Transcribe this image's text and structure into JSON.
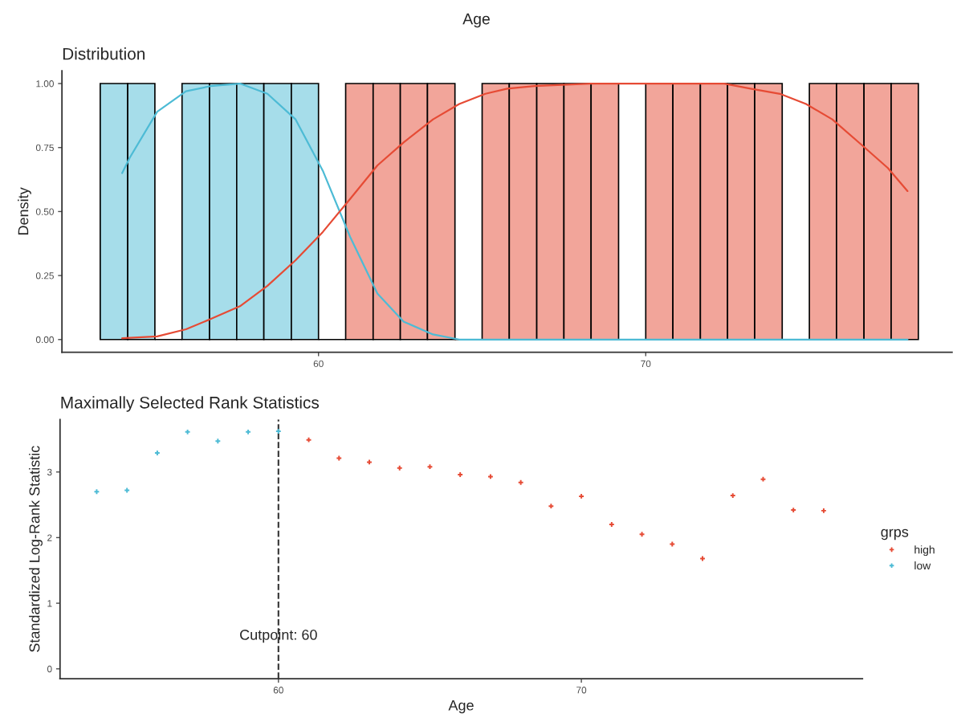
{
  "chart_data": [
    {
      "type": "histogram",
      "title": "Distribution",
      "ylabel": "Density",
      "annotations": [
        "Age"
      ],
      "bins": [
        53.33,
        54.17,
        55.0,
        55.83,
        56.67,
        57.5,
        58.33,
        59.17,
        60.0,
        60.83,
        61.67,
        62.5,
        63.33,
        64.17,
        65.0,
        65.83,
        66.67,
        67.5,
        68.33,
        69.17,
        70.0,
        70.83,
        71.67,
        72.5,
        73.33,
        74.17,
        75.0,
        75.83,
        76.67,
        77.5,
        78.33
      ],
      "values": [
        1,
        1,
        0,
        1,
        1,
        1,
        1,
        1,
        0,
        1,
        1,
        1,
        1,
        0,
        1,
        1,
        1,
        1,
        1,
        0,
        1,
        1,
        1,
        1,
        1,
        0,
        1,
        1,
        1,
        1
      ],
      "colors": [
        "#a6ddea",
        "#a6ddea",
        "#000000",
        "#a6ddea",
        "#a6ddea",
        "#a6ddea",
        "#a6ddea",
        "#a6ddea",
        "#000000",
        "#f2a59a",
        "#f2a59a",
        "#f2a59a",
        "#f2a59a",
        "#000000",
        "#f2a59a",
        "#f2a59a",
        "#f2a59a",
        "#f2a59a",
        "#f2a59a",
        "#000000",
        "#f2a59a",
        "#f2a59a",
        "#f2a59a",
        "#f2a59a",
        "#f2a59a",
        "#000000",
        "#f2a59a",
        "#f2a59a",
        "#f2a59a",
        "#f2a59a"
      ],
      "xlim": [
        52.16,
        79.36
      ],
      "xticks": [
        60,
        70
      ],
      "ylim": [
        -0.05,
        1.05
      ],
      "yticks": [
        {
          "value": 0,
          "label": "0.00"
        },
        {
          "value": 0.25,
          "label": "0.25"
        },
        {
          "value": 0.5,
          "label": "0.50"
        },
        {
          "value": 0.75,
          "label": "0.75"
        },
        {
          "value": 1,
          "label": "1.00"
        }
      ],
      "series": [
        {
          "type": "line",
          "color": "#4dbbd5",
          "x": [
            54,
            54.23,
            55.07,
            55.95,
            56.7,
            57.6,
            58.44,
            59.3,
            60.13,
            60.97,
            61.8,
            62.6,
            63.5,
            64.3,
            66,
            70,
            74,
            78
          ],
          "values": [
            0.65,
            0.71,
            0.89,
            0.97,
            0.99,
            1.0,
            0.96,
            0.86,
            0.66,
            0.4,
            0.18,
            0.07,
            0.02,
            0,
            0,
            0,
            0,
            0
          ]
        },
        {
          "type": "line",
          "color": "#e64b35",
          "x": [
            54,
            55.07,
            55.95,
            56.7,
            57.6,
            58.44,
            59.3,
            60.13,
            60.97,
            61.8,
            62.6,
            63.5,
            64.3,
            65.1,
            65.77,
            66.6,
            68.3,
            70,
            72.4,
            73.2,
            74.1,
            74.9,
            75.7,
            76.6,
            77.4,
            78
          ],
          "values": [
            0.005,
            0.012,
            0.04,
            0.08,
            0.13,
            0.21,
            0.31,
            0.42,
            0.55,
            0.68,
            0.77,
            0.86,
            0.92,
            0.96,
            0.98,
            0.99,
            1.0,
            1.0,
            1.0,
            0.98,
            0.96,
            0.92,
            0.86,
            0.76,
            0.67,
            0.58
          ]
        }
      ]
    },
    {
      "type": "scatter",
      "title": "Maximally Selected Rank Statistics",
      "xlabel": "Age",
      "ylabel": "Standardized Log-Rank Statistic",
      "legend_title": "grps",
      "legend": "right",
      "marker": "cross",
      "xlim": [
        52.79,
        79.28
      ],
      "xticks": [
        60,
        70
      ],
      "ylim": [
        -0.15,
        3.8
      ],
      "yticks": [
        0,
        1,
        2,
        3
      ],
      "ref_lines": [
        {
          "axis": "x",
          "value": 60,
          "line_style": "dashed",
          "color": "#333333"
        }
      ],
      "annotations": [
        {
          "text": "Cutpoint: 60",
          "x": 60,
          "y": 0.5
        }
      ],
      "series": [
        {
          "name": "high",
          "color": "#e64b35",
          "x": [
            61,
            62,
            63,
            64,
            65,
            66,
            67,
            68,
            69,
            70,
            71,
            72,
            73,
            74,
            75,
            76,
            77,
            78
          ],
          "values": [
            3.49,
            3.21,
            3.15,
            3.06,
            3.08,
            2.96,
            2.93,
            2.84,
            2.48,
            2.63,
            2.2,
            2.05,
            1.9,
            1.68,
            2.64,
            2.89,
            2.42,
            2.41
          ]
        },
        {
          "name": "low",
          "color": "#4dbbd5",
          "x": [
            54,
            55,
            56,
            57,
            58,
            59,
            60
          ],
          "values": [
            2.7,
            2.72,
            3.29,
            3.61,
            3.47,
            3.61,
            3.62
          ]
        }
      ]
    }
  ]
}
